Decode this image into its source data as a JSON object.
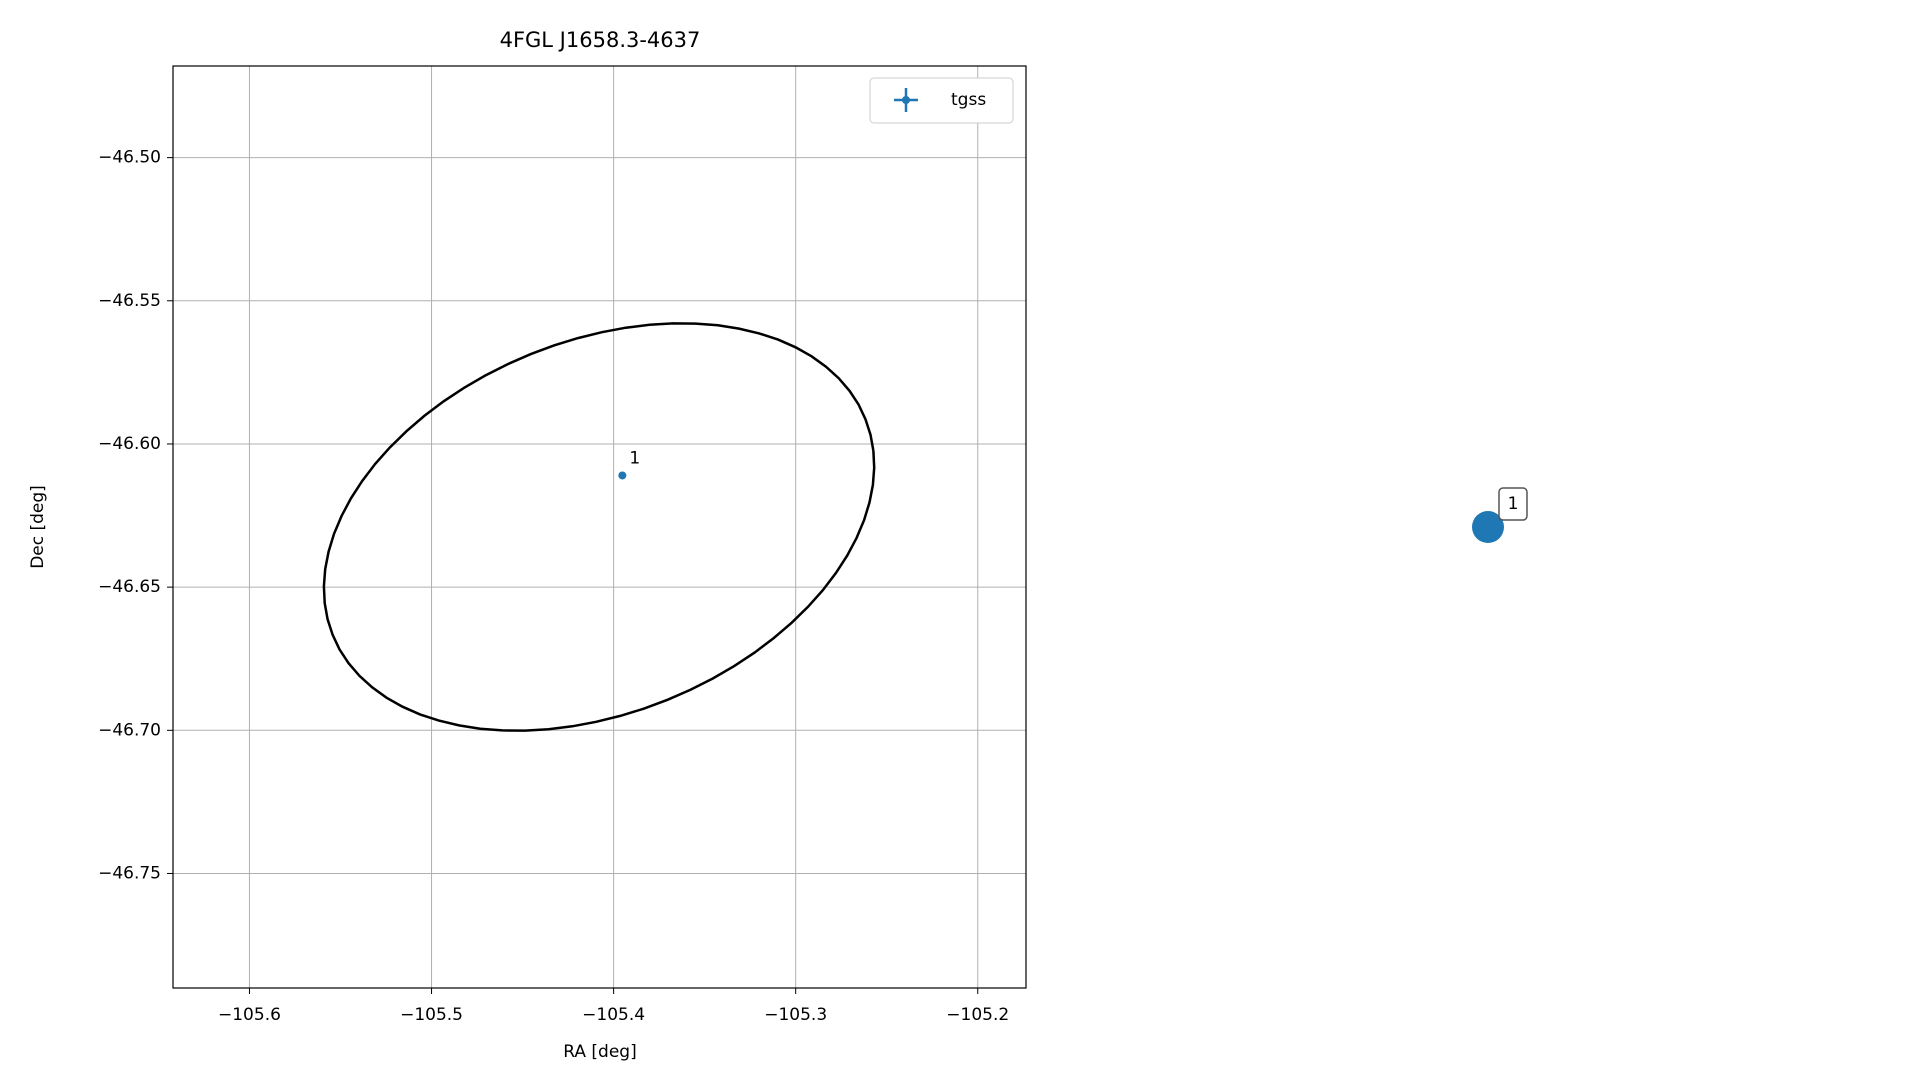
{
  "chart_data": [
    {
      "type": "scatter",
      "title": "4FGL J1658.3-4637",
      "x_label": "RA [deg]",
      "y_label": "Dec [deg]",
      "xlim": [
        -105.642,
        -105.1735
      ],
      "ylim": [
        -46.79,
        -46.468
      ],
      "xticks": [
        {
          "value": -105.6,
          "label": "−105.6"
        },
        {
          "value": -105.5,
          "label": "−105.5"
        },
        {
          "value": -105.4,
          "label": "−105.4"
        },
        {
          "value": -105.3,
          "label": "−105.3"
        },
        {
          "value": -105.2,
          "label": "−105.2"
        }
      ],
      "yticks": [
        {
          "value": -46.5,
          "label": "−46.50"
        },
        {
          "value": -46.55,
          "label": "−46.55"
        },
        {
          "value": -46.6,
          "label": "−46.60"
        },
        {
          "value": -46.65,
          "label": "−46.65"
        },
        {
          "value": -46.7,
          "label": "−46.70"
        },
        {
          "value": -46.75,
          "label": "−46.75"
        }
      ],
      "grid": true,
      "legend": "upper right",
      "series": [
        {
          "name": "tgss",
          "color": "#1f77b4",
          "x": [
            -105.3952
          ],
          "y": [
            -46.611
          ],
          "labels": [
            "1"
          ]
        }
      ],
      "ellipse": {
        "center": [
          -105.408,
          -46.629
        ],
        "semi_major": 0.153,
        "semi_minor": 0.067,
        "angle": 10,
        "color": "#000000"
      }
    },
    {
      "type": "marker",
      "color": "#1f77b4",
      "labels": [
        "1"
      ]
    }
  ]
}
